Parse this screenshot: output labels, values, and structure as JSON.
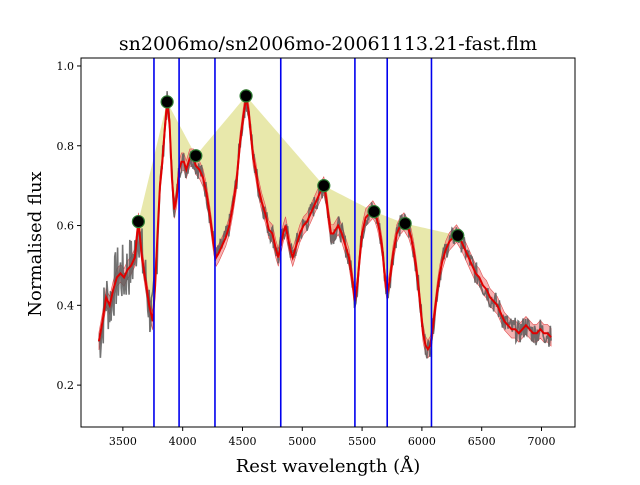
{
  "chart_data": {
    "type": "line",
    "title": "sn2006mo/sn2006mo-20061113.21-fast.flm",
    "xlabel": "Rest wavelength (Å)",
    "ylabel": "Normalised flux",
    "xlim": [
      3150,
      7280
    ],
    "ylim": [
      0.095,
      1.02
    ],
    "xticks": [
      3500,
      4000,
      4500,
      5000,
      5500,
      6000,
      6500,
      7000
    ],
    "yticks": [
      0.2,
      0.4,
      0.6,
      0.8,
      1.0
    ],
    "ytick_labels": [
      "0.2",
      "0.4",
      "0.6",
      "0.8",
      "1.0"
    ],
    "grid": false,
    "colors": {
      "raw_spectrum": "#5a5a5a",
      "smoothed": "#e00000",
      "uncertainty_band": "#f08080",
      "continuum_fill": "#cccc44",
      "feature_lines": "#0000ee",
      "peak_markers": "#000000",
      "peak_marker_ring": "#2e7d32"
    },
    "vertical_lines_x": [
      3760,
      3970,
      4270,
      4820,
      5440,
      5710,
      6080
    ],
    "peaks": [
      {
        "x": 3630,
        "y": 0.61
      },
      {
        "x": 3870,
        "y": 0.91
      },
      {
        "x": 4110,
        "y": 0.775
      },
      {
        "x": 4530,
        "y": 0.925
      },
      {
        "x": 5180,
        "y": 0.7
      },
      {
        "x": 5600,
        "y": 0.635
      },
      {
        "x": 5860,
        "y": 0.605
      },
      {
        "x": 6300,
        "y": 0.575
      }
    ],
    "smoothed": {
      "x": [
        3300,
        3330,
        3360,
        3390,
        3420,
        3450,
        3480,
        3510,
        3540,
        3570,
        3600,
        3630,
        3660,
        3690,
        3720,
        3750,
        3770,
        3790,
        3810,
        3830,
        3850,
        3870,
        3890,
        3910,
        3930,
        3950,
        3970,
        3990,
        4010,
        4030,
        4060,
        4090,
        4110,
        4140,
        4170,
        4200,
        4230,
        4260,
        4280,
        4300,
        4330,
        4360,
        4390,
        4420,
        4450,
        4480,
        4510,
        4530,
        4550,
        4570,
        4590,
        4610,
        4630,
        4660,
        4690,
        4720,
        4750,
        4780,
        4800,
        4820,
        4840,
        4860,
        4880,
        4900,
        4920,
        4950,
        4980,
        5010,
        5040,
        5070,
        5100,
        5130,
        5160,
        5180,
        5200,
        5220,
        5240,
        5260,
        5280,
        5300,
        5330,
        5360,
        5390,
        5420,
        5440,
        5460,
        5480,
        5500,
        5530,
        5560,
        5590,
        5610,
        5630,
        5650,
        5670,
        5690,
        5710,
        5730,
        5760,
        5790,
        5820,
        5850,
        5870,
        5890,
        5910,
        5930,
        5950,
        5970,
        5990,
        6010,
        6030,
        6050,
        6070,
        6090,
        6110,
        6130,
        6150,
        6170,
        6200,
        6230,
        6260,
        6290,
        6310,
        6330,
        6360,
        6390,
        6420,
        6450,
        6480,
        6510,
        6540,
        6570,
        6600,
        6630,
        6660,
        6690,
        6720,
        6750,
        6780,
        6810,
        6840,
        6870,
        6900,
        6930,
        6960,
        6990,
        7020,
        7050,
        7080
      ],
      "y": [
        0.31,
        0.36,
        0.42,
        0.4,
        0.44,
        0.47,
        0.48,
        0.47,
        0.49,
        0.5,
        0.52,
        0.61,
        0.52,
        0.46,
        0.4,
        0.36,
        0.45,
        0.58,
        0.7,
        0.76,
        0.84,
        0.91,
        0.86,
        0.72,
        0.64,
        0.67,
        0.74,
        0.76,
        0.76,
        0.74,
        0.77,
        0.77,
        0.75,
        0.74,
        0.72,
        0.68,
        0.62,
        0.55,
        0.52,
        0.53,
        0.55,
        0.57,
        0.6,
        0.65,
        0.71,
        0.81,
        0.88,
        0.92,
        0.89,
        0.83,
        0.77,
        0.74,
        0.7,
        0.66,
        0.63,
        0.59,
        0.58,
        0.54,
        0.52,
        0.55,
        0.58,
        0.6,
        0.57,
        0.54,
        0.52,
        0.55,
        0.58,
        0.6,
        0.61,
        0.63,
        0.65,
        0.67,
        0.69,
        0.7,
        0.67,
        0.62,
        0.58,
        0.58,
        0.59,
        0.6,
        0.58,
        0.55,
        0.52,
        0.46,
        0.41,
        0.45,
        0.52,
        0.58,
        0.62,
        0.63,
        0.64,
        0.63,
        0.61,
        0.58,
        0.54,
        0.47,
        0.43,
        0.46,
        0.53,
        0.58,
        0.6,
        0.61,
        0.6,
        0.59,
        0.57,
        0.54,
        0.5,
        0.45,
        0.39,
        0.33,
        0.3,
        0.29,
        0.3,
        0.34,
        0.39,
        0.44,
        0.48,
        0.51,
        0.54,
        0.56,
        0.57,
        0.58,
        0.57,
        0.56,
        0.54,
        0.52,
        0.5,
        0.48,
        0.47,
        0.45,
        0.44,
        0.42,
        0.41,
        0.4,
        0.38,
        0.36,
        0.35,
        0.34,
        0.34,
        0.33,
        0.34,
        0.35,
        0.34,
        0.33,
        0.33,
        0.34,
        0.33,
        0.33,
        0.32
      ]
    }
  }
}
